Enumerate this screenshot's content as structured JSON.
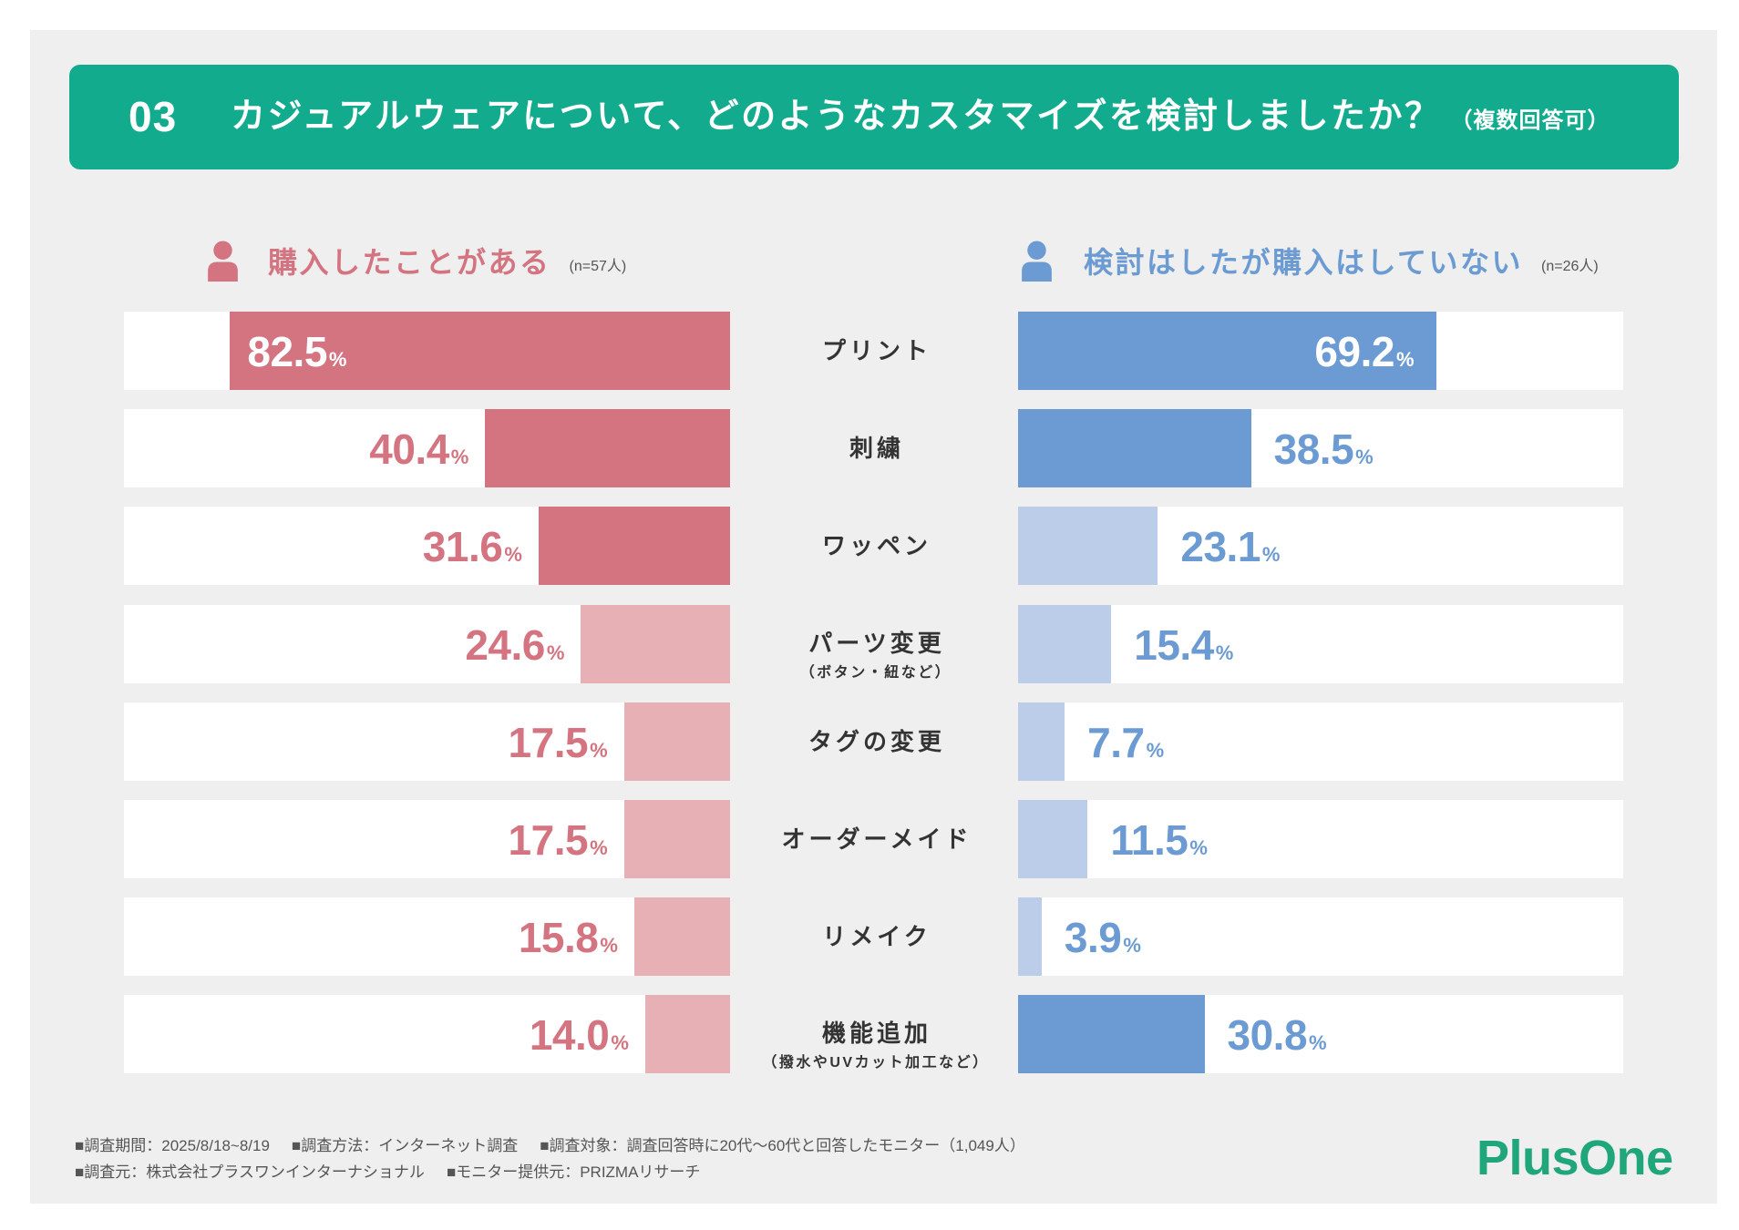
{
  "header": {
    "number": "03",
    "note": "（複数回答可）"
  },
  "chart_data": {
    "type": "bar",
    "title": "カジュアルウェアについて、どのようなカスタマイズを検討しましたか？",
    "categories": [
      "プリント",
      "刺繍",
      "ワッペン",
      "パーツ変更",
      "タグの変更",
      "オーダーメイド",
      "リメイク",
      "機能追加"
    ],
    "category_notes": {
      "パーツ変更": "（ボタン・紐など）",
      "機能追加": "（撥水やUVカット加工など）"
    },
    "unit": "%",
    "xlim": [
      0,
      100
    ],
    "series": [
      {
        "name": "購入したことがある",
        "n": "(n=57人)",
        "icon": "person-icon",
        "values": [
          82.5,
          40.4,
          31.6,
          24.6,
          17.5,
          17.5,
          15.8,
          14.0
        ],
        "emphasis": [
          true,
          true,
          true,
          false,
          false,
          false,
          false,
          false
        ],
        "color": "#d47480",
        "light_color": "#e7b0b4"
      },
      {
        "name": "検討はしたが購入はしていない",
        "n": "(n=26人)",
        "icon": "person-icon",
        "values": [
          69.2,
          38.5,
          23.1,
          15.4,
          7.7,
          11.5,
          3.9,
          30.8
        ],
        "emphasis": [
          true,
          true,
          false,
          false,
          false,
          false,
          false,
          true
        ],
        "color": "#6b9bd2",
        "light_color": "#bccde9"
      }
    ]
  },
  "footer": {
    "lines": [
      [
        "■調査期間：2025/8/18~8/19",
        "■調査方法：インターネット調査",
        "■調査対象：調査回答時に20代〜60代と回答したモニター（1,049人）"
      ],
      [
        "■調査元：株式会社プラスワンインターナショナル",
        "■モニター提供元：PRIZMAリサーチ"
      ]
    ]
  },
  "logo": {
    "text": "PlusOne",
    "color": "#1fa67b"
  },
  "colors": {
    "background": "#eeefee",
    "banner": "#12ab8d",
    "label_dark": "#333333"
  }
}
